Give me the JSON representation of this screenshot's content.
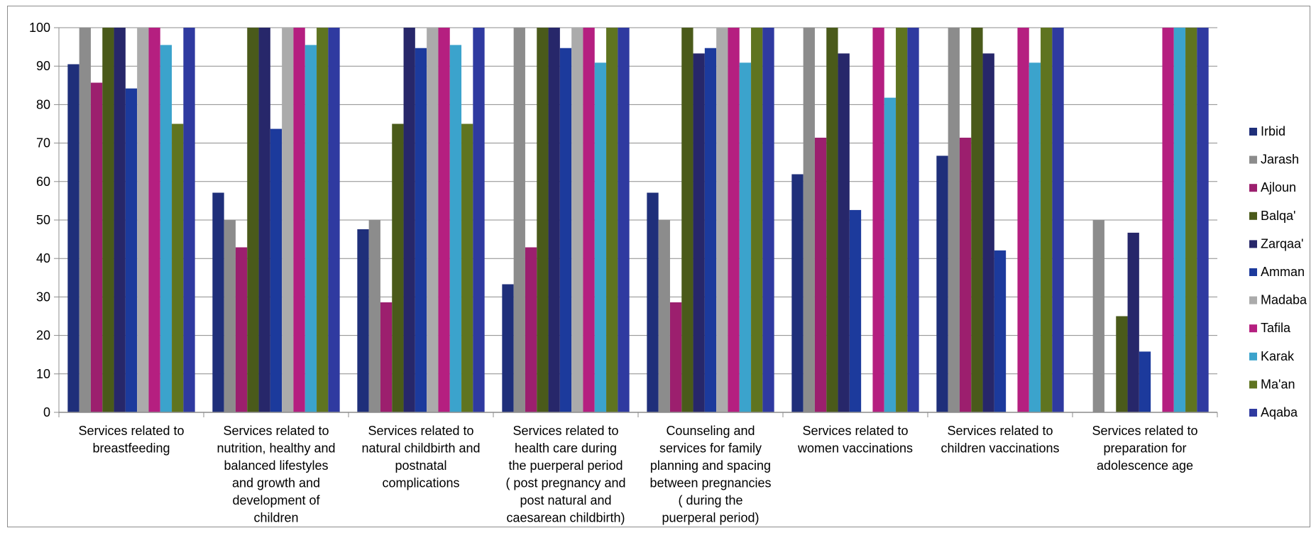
{
  "chart_data": {
    "type": "bar",
    "title": "",
    "xlabel": "",
    "ylabel": "",
    "ylim": [
      0,
      100
    ],
    "yticks": [
      0,
      10,
      20,
      30,
      40,
      50,
      60,
      70,
      80,
      90,
      100
    ],
    "grid": "horizontal",
    "legend_position": "right",
    "categories": [
      [
        "Services related to",
        "breastfeeding"
      ],
      [
        "Services related to",
        "nutrition, healthy and",
        "balanced lifestyles",
        "and growth and",
        "development of",
        "children"
      ],
      [
        "Services related to",
        "natural childbirth and",
        "postnatal",
        "complications"
      ],
      [
        "Services related to",
        "health care during",
        "the puerperal period",
        "( post pregnancy and",
        "post  natural and",
        "caesarean childbirth)"
      ],
      [
        "Counseling and",
        "services for family",
        "planning and spacing",
        "between pregnancies",
        "( during the",
        "puerperal period)"
      ],
      [
        "Services related to",
        "women vaccinations"
      ],
      [
        "Services related to",
        "children vaccinations"
      ],
      [
        "Services related to",
        "preparation for",
        "adolescence age"
      ]
    ],
    "series": [
      {
        "name": "Irbid",
        "color": "#1f2f7a",
        "values": [
          90.5,
          57.1,
          47.6,
          33.3,
          57.1,
          61.9,
          66.7,
          0
        ]
      },
      {
        "name": "Jarash",
        "color": "#8c8c8c",
        "values": [
          100,
          50,
          50,
          100,
          50,
          100,
          100,
          50
        ]
      },
      {
        "name": "Ajloun",
        "color": "#9c1f6e",
        "values": [
          85.7,
          42.9,
          28.6,
          42.9,
          28.6,
          71.4,
          71.4,
          0
        ]
      },
      {
        "name": "Balqa'",
        "color": "#4a5a1a",
        "values": [
          100,
          100,
          75,
          100,
          100,
          100,
          100,
          25
        ]
      },
      {
        "name": "Zarqaa'",
        "color": "#27276a",
        "values": [
          100,
          100,
          100,
          100,
          93.3,
          93.3,
          93.3,
          46.7
        ]
      },
      {
        "name": "Amman",
        "color": "#1c3a9c",
        "values": [
          84.2,
          73.7,
          94.7,
          94.7,
          94.7,
          52.6,
          42.1,
          15.8
        ]
      },
      {
        "name": "Madaba",
        "color": "#ababab",
        "values": [
          100,
          100,
          100,
          100,
          100,
          0,
          0,
          0
        ]
      },
      {
        "name": "Tafila",
        "color": "#b51f80",
        "values": [
          100,
          100,
          100,
          100,
          100,
          100,
          100,
          100
        ]
      },
      {
        "name": "Karak",
        "color": "#3ba3cc",
        "values": [
          95.5,
          95.5,
          95.5,
          90.9,
          90.9,
          81.8,
          90.9,
          100
        ]
      },
      {
        "name": "Ma'an",
        "color": "#5f7420",
        "values": [
          75,
          100,
          75,
          100,
          100,
          100,
          100,
          100
        ]
      },
      {
        "name": "Aqaba",
        "color": "#2f3aa0",
        "values": [
          100,
          100,
          100,
          100,
          100,
          100,
          100,
          100
        ]
      }
    ]
  }
}
